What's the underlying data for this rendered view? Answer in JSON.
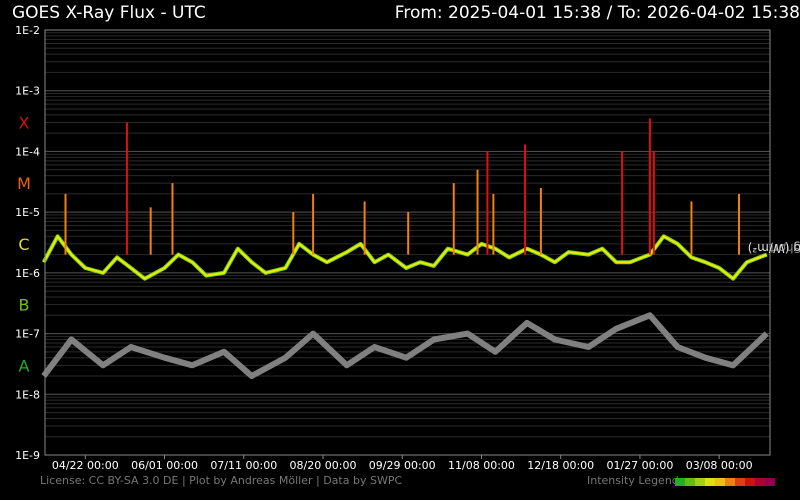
{
  "title_left": "GOES X-Ray Flux - UTC",
  "title_right": "From: 2025-04-01 15:38  /  To: 2026-04-02 15:38",
  "ylabel_short": "Short",
  "ylabel_sep": ", ",
  "ylabel_long": "Long (W/m²)",
  "license": "License: CC BY-SA 3.0 DE | Plot by Andreas Möller | Data by SWPC",
  "legend_label": "Intensity Legend",
  "colors": {
    "background": "#000000",
    "grid": "#2a2a2a",
    "axis": "#888888",
    "short": "#808080",
    "long_b": "#80d010",
    "long_c": "#e6ec10",
    "long_m": "#f08010",
    "long_x": "#e01010",
    "class_x": "#d01010",
    "class_m": "#f06010",
    "class_c": "#e0e010",
    "class_b": "#70c010",
    "class_a": "#20b020"
  },
  "legend_colors": [
    "#20b020",
    "#60c010",
    "#a0d010",
    "#e0e010",
    "#f0c010",
    "#f08010",
    "#e04010",
    "#d01010",
    "#b00030",
    "#900050"
  ],
  "chart_data": {
    "type": "line",
    "y_scale": "log",
    "ylim": [
      1e-09,
      0.01
    ],
    "y_tick_labels": [
      "1E-2",
      "1E-3",
      "1E-4",
      "1E-5",
      "1E-6",
      "1E-7",
      "1E-8",
      "1E-9"
    ],
    "y_tick_values": [
      0.01,
      0.001,
      0.0001,
      1e-05,
      1e-06,
      1e-07,
      1e-08,
      1e-09
    ],
    "flare_classes": [
      {
        "label": "X",
        "value": 0.0003
      },
      {
        "label": "M",
        "value": 3e-05
      },
      {
        "label": "C",
        "value": 3e-06
      },
      {
        "label": "B",
        "value": 3e-07
      },
      {
        "label": "A",
        "value": 3e-08
      }
    ],
    "xlim": [
      "2025-04-01 15:38",
      "2026-04-02 15:38"
    ],
    "x_tick_labels": [
      "04/22 00:00",
      "06/01 00:00",
      "07/11 00:00",
      "08/20 00:00",
      "09/29 00:00",
      "11/08 00:00",
      "12/18 00:00",
      "01/27 00:00",
      "03/08 00:00"
    ],
    "x_tick_dates": [
      "2025-04-22",
      "2025-06-01",
      "2025-07-11",
      "2025-08-20",
      "2025-09-29",
      "2025-11-08",
      "2025-12-18",
      "2026-01-27",
      "2026-03-08"
    ],
    "grid": true,
    "series": [
      {
        "name": "Short",
        "x": [
          "2025-04-01",
          "2025-04-15",
          "2025-05-01",
          "2025-05-15",
          "2025-06-01",
          "2025-06-15",
          "2025-07-01",
          "2025-07-15",
          "2025-08-01",
          "2025-08-15",
          "2025-09-01",
          "2025-09-15",
          "2025-10-01",
          "2025-10-15",
          "2025-11-01",
          "2025-11-15",
          "2025-12-01",
          "2025-12-15",
          "2026-01-01",
          "2026-01-15",
          "2026-02-01",
          "2026-02-15",
          "2026-03-01",
          "2026-03-15",
          "2026-04-01"
        ],
        "values": [
          2e-08,
          8e-08,
          3e-08,
          6e-08,
          4e-08,
          3e-08,
          5e-08,
          2e-08,
          4e-08,
          1e-07,
          3e-08,
          6e-08,
          4e-08,
          8e-08,
          1e-07,
          5e-08,
          1.5e-07,
          8e-08,
          6e-08,
          1.2e-07,
          2e-07,
          6e-08,
          4e-08,
          3e-08,
          1e-07
        ]
      },
      {
        "name": "Long",
        "x": [
          "2025-04-01",
          "2025-04-08",
          "2025-04-15",
          "2025-04-22",
          "2025-05-01",
          "2025-05-08",
          "2025-05-15",
          "2025-05-22",
          "2025-06-01",
          "2025-06-08",
          "2025-06-15",
          "2025-06-22",
          "2025-07-01",
          "2025-07-08",
          "2025-07-15",
          "2025-07-22",
          "2025-08-01",
          "2025-08-08",
          "2025-08-15",
          "2025-08-22",
          "2025-09-01",
          "2025-09-08",
          "2025-09-15",
          "2025-09-22",
          "2025-10-01",
          "2025-10-08",
          "2025-10-15",
          "2025-10-22",
          "2025-11-01",
          "2025-11-08",
          "2025-11-15",
          "2025-11-22",
          "2025-12-01",
          "2025-12-08",
          "2025-12-15",
          "2025-12-22",
          "2026-01-01",
          "2026-01-08",
          "2026-01-15",
          "2026-01-22",
          "2026-02-01",
          "2026-02-08",
          "2026-02-15",
          "2026-02-22",
          "2026-03-01",
          "2026-03-08",
          "2026-03-15",
          "2026-03-22",
          "2026-04-01"
        ],
        "values": [
          1.5e-06,
          4e-06,
          2e-06,
          1.2e-06,
          1e-06,
          1.8e-06,
          1.2e-06,
          8e-07,
          1.2e-06,
          2e-06,
          1.5e-06,
          9e-07,
          1e-06,
          2.5e-06,
          1.5e-06,
          1e-06,
          1.2e-06,
          3e-06,
          2e-06,
          1.5e-06,
          2.2e-06,
          3e-06,
          1.5e-06,
          2e-06,
          1.2e-06,
          1.5e-06,
          1.3e-06,
          2.5e-06,
          2e-06,
          3e-06,
          2.5e-06,
          1.8e-06,
          2.5e-06,
          2e-06,
          1.5e-06,
          2.2e-06,
          2e-06,
          2.5e-06,
          1.5e-06,
          1.5e-06,
          2e-06,
          4e-06,
          3e-06,
          1.8e-06,
          1.5e-06,
          1.2e-06,
          8e-07,
          1.5e-06,
          2e-06
        ]
      }
    ],
    "flares": [
      {
        "date": "2025-04-12",
        "peak": 2e-05
      },
      {
        "date": "2025-05-13",
        "peak": 0.0003
      },
      {
        "date": "2025-05-25",
        "peak": 1.2e-05
      },
      {
        "date": "2025-06-05",
        "peak": 3e-05
      },
      {
        "date": "2025-08-05",
        "peak": 1e-05
      },
      {
        "date": "2025-08-15",
        "peak": 2e-05
      },
      {
        "date": "2025-09-10",
        "peak": 1.5e-05
      },
      {
        "date": "2025-10-02",
        "peak": 1e-05
      },
      {
        "date": "2025-10-25",
        "peak": 3e-05
      },
      {
        "date": "2025-11-06",
        "peak": 5e-05
      },
      {
        "date": "2025-11-11",
        "peak": 0.0001
      },
      {
        "date": "2025-11-14",
        "peak": 2e-05
      },
      {
        "date": "2025-11-30",
        "peak": 0.00013
      },
      {
        "date": "2025-12-08",
        "peak": 2.5e-05
      },
      {
        "date": "2026-01-18",
        "peak": 0.0001
      },
      {
        "date": "2026-02-01",
        "peak": 0.00035
      },
      {
        "date": "2026-02-03",
        "peak": 0.0001
      },
      {
        "date": "2026-02-22",
        "peak": 1.5e-05
      },
      {
        "date": "2026-03-18",
        "peak": 2e-05
      }
    ]
  }
}
